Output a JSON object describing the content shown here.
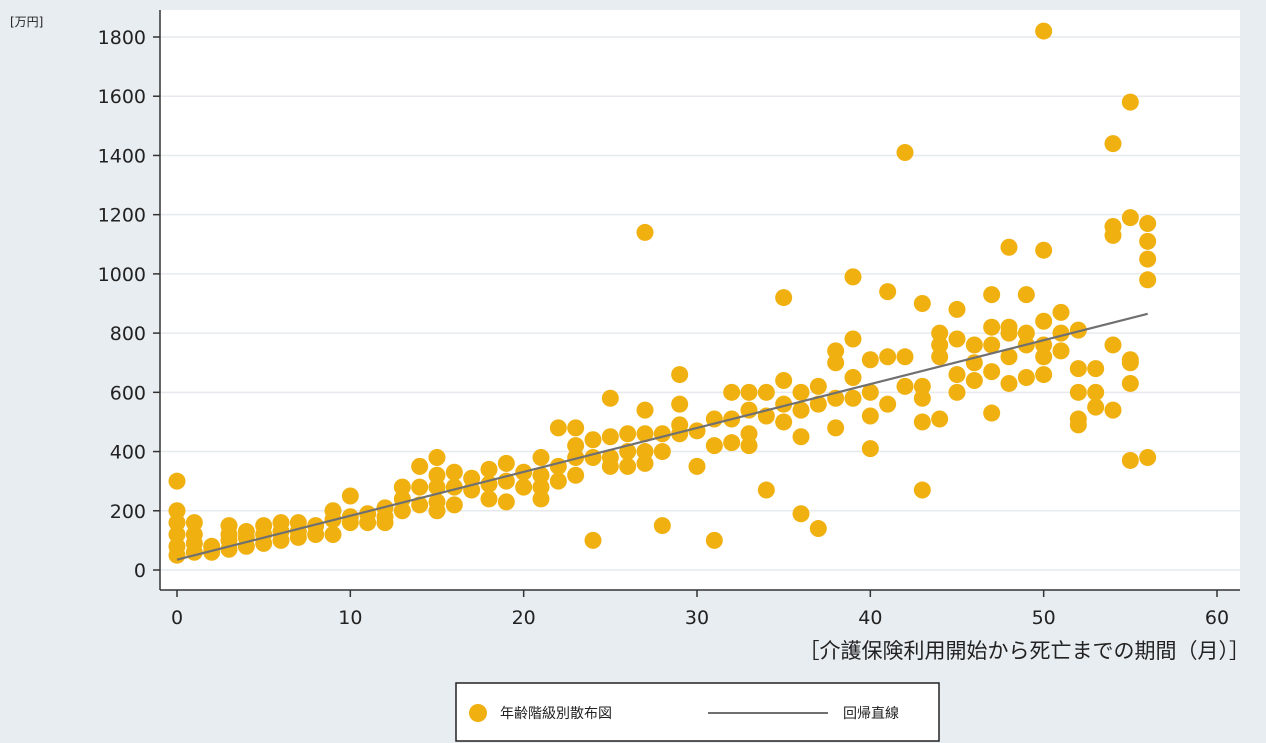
{
  "chart_data": {
    "type": "scatter",
    "ylabel": "[万円]",
    "xlabel": "［介護保険利用開始から死亡までの期間（月）］",
    "xlim": [
      0,
      60
    ],
    "ylim": [
      0,
      1800
    ],
    "xticks": [
      0,
      10,
      20,
      30,
      40,
      50,
      60
    ],
    "yticks": [
      0,
      200,
      400,
      600,
      800,
      1000,
      1200,
      1400,
      1600,
      1800
    ],
    "grid": true,
    "legend_position": "bottom-center",
    "colors": {
      "scatter": "#f0b010",
      "line": "#707070",
      "background": "#e8edf1",
      "plot": "#ffffff"
    },
    "series": [
      {
        "name": "年齢階級別散布図",
        "kind": "scatter",
        "points": [
          [
            0,
            300
          ],
          [
            0,
            200
          ],
          [
            0,
            160
          ],
          [
            0,
            120
          ],
          [
            0,
            80
          ],
          [
            0,
            50
          ],
          [
            1,
            160
          ],
          [
            1,
            120
          ],
          [
            1,
            90
          ],
          [
            1,
            60
          ],
          [
            2,
            80
          ],
          [
            2,
            60
          ],
          [
            3,
            150
          ],
          [
            3,
            120
          ],
          [
            3,
            100
          ],
          [
            3,
            70
          ],
          [
            4,
            130
          ],
          [
            4,
            110
          ],
          [
            4,
            80
          ],
          [
            5,
            150
          ],
          [
            5,
            120
          ],
          [
            5,
            90
          ],
          [
            6,
            160
          ],
          [
            6,
            130
          ],
          [
            6,
            100
          ],
          [
            7,
            160
          ],
          [
            7,
            130
          ],
          [
            7,
            110
          ],
          [
            8,
            150
          ],
          [
            8,
            120
          ],
          [
            9,
            200
          ],
          [
            9,
            170
          ],
          [
            9,
            120
          ],
          [
            10,
            250
          ],
          [
            10,
            180
          ],
          [
            10,
            160
          ],
          [
            11,
            190
          ],
          [
            11,
            160
          ],
          [
            12,
            210
          ],
          [
            12,
            180
          ],
          [
            12,
            160
          ],
          [
            13,
            280
          ],
          [
            13,
            240
          ],
          [
            13,
            200
          ],
          [
            14,
            350
          ],
          [
            14,
            280
          ],
          [
            14,
            220
          ],
          [
            15,
            380
          ],
          [
            15,
            320
          ],
          [
            15,
            280
          ],
          [
            15,
            230
          ],
          [
            15,
            200
          ],
          [
            16,
            330
          ],
          [
            16,
            280
          ],
          [
            16,
            220
          ],
          [
            17,
            310
          ],
          [
            17,
            270
          ],
          [
            18,
            340
          ],
          [
            18,
            290
          ],
          [
            18,
            240
          ],
          [
            19,
            360
          ],
          [
            19,
            300
          ],
          [
            19,
            230
          ],
          [
            20,
            330
          ],
          [
            20,
            280
          ],
          [
            21,
            380
          ],
          [
            21,
            320
          ],
          [
            21,
            280
          ],
          [
            21,
            240
          ],
          [
            22,
            480
          ],
          [
            22,
            350
          ],
          [
            22,
            300
          ],
          [
            23,
            480
          ],
          [
            23,
            420
          ],
          [
            23,
            380
          ],
          [
            23,
            320
          ],
          [
            24,
            440
          ],
          [
            24,
            380
          ],
          [
            24,
            100
          ],
          [
            25,
            580
          ],
          [
            25,
            450
          ],
          [
            25,
            380
          ],
          [
            25,
            350
          ],
          [
            26,
            460
          ],
          [
            26,
            400
          ],
          [
            26,
            350
          ],
          [
            27,
            540
          ],
          [
            27,
            460
          ],
          [
            27,
            400
          ],
          [
            27,
            360
          ],
          [
            27,
            1140
          ],
          [
            28,
            460
          ],
          [
            28,
            400
          ],
          [
            28,
            150
          ],
          [
            29,
            660
          ],
          [
            29,
            560
          ],
          [
            29,
            490
          ],
          [
            29,
            460
          ],
          [
            30,
            470
          ],
          [
            30,
            350
          ],
          [
            31,
            510
          ],
          [
            31,
            420
          ],
          [
            31,
            100
          ],
          [
            32,
            600
          ],
          [
            32,
            510
          ],
          [
            32,
            430
          ],
          [
            33,
            600
          ],
          [
            33,
            540
          ],
          [
            33,
            460
          ],
          [
            33,
            420
          ],
          [
            34,
            600
          ],
          [
            34,
            520
          ],
          [
            34,
            270
          ],
          [
            35,
            920
          ],
          [
            35,
            640
          ],
          [
            35,
            560
          ],
          [
            35,
            500
          ],
          [
            36,
            600
          ],
          [
            36,
            540
          ],
          [
            36,
            450
          ],
          [
            36,
            190
          ],
          [
            37,
            620
          ],
          [
            37,
            560
          ],
          [
            37,
            140
          ],
          [
            38,
            740
          ],
          [
            38,
            700
          ],
          [
            38,
            580
          ],
          [
            38,
            480
          ],
          [
            39,
            990
          ],
          [
            39,
            780
          ],
          [
            39,
            650
          ],
          [
            39,
            580
          ],
          [
            40,
            710
          ],
          [
            40,
            600
          ],
          [
            40,
            520
          ],
          [
            40,
            410
          ],
          [
            41,
            940
          ],
          [
            41,
            720
          ],
          [
            41,
            560
          ],
          [
            42,
            1410
          ],
          [
            42,
            720
          ],
          [
            42,
            620
          ],
          [
            43,
            900
          ],
          [
            43,
            620
          ],
          [
            43,
            580
          ],
          [
            43,
            500
          ],
          [
            43,
            270
          ],
          [
            44,
            800
          ],
          [
            44,
            760
          ],
          [
            44,
            720
          ],
          [
            44,
            510
          ],
          [
            45,
            880
          ],
          [
            45,
            780
          ],
          [
            45,
            660
          ],
          [
            45,
            600
          ],
          [
            46,
            760
          ],
          [
            46,
            700
          ],
          [
            46,
            640
          ],
          [
            47,
            930
          ],
          [
            47,
            820
          ],
          [
            47,
            760
          ],
          [
            47,
            670
          ],
          [
            47,
            530
          ],
          [
            48,
            1090
          ],
          [
            48,
            820
          ],
          [
            48,
            800
          ],
          [
            48,
            720
          ],
          [
            48,
            630
          ],
          [
            49,
            930
          ],
          [
            49,
            800
          ],
          [
            49,
            760
          ],
          [
            49,
            650
          ],
          [
            50,
            1820
          ],
          [
            50,
            1080
          ],
          [
            50,
            840
          ],
          [
            50,
            760
          ],
          [
            50,
            720
          ],
          [
            50,
            660
          ],
          [
            51,
            870
          ],
          [
            51,
            800
          ],
          [
            51,
            740
          ],
          [
            52,
            810
          ],
          [
            52,
            680
          ],
          [
            52,
            600
          ],
          [
            52,
            510
          ],
          [
            52,
            490
          ],
          [
            53,
            680
          ],
          [
            53,
            600
          ],
          [
            53,
            550
          ],
          [
            54,
            1440
          ],
          [
            54,
            1160
          ],
          [
            54,
            1130
          ],
          [
            54,
            760
          ],
          [
            54,
            540
          ],
          [
            55,
            1580
          ],
          [
            55,
            1190
          ],
          [
            55,
            710
          ],
          [
            55,
            700
          ],
          [
            55,
            630
          ],
          [
            55,
            370
          ],
          [
            56,
            1170
          ],
          [
            56,
            1110
          ],
          [
            56,
            1050
          ],
          [
            56,
            980
          ],
          [
            56,
            380
          ]
        ]
      },
      {
        "name": "回帰直線",
        "kind": "line",
        "points": [
          [
            0,
            35
          ],
          [
            56,
            865
          ]
        ]
      }
    ]
  }
}
